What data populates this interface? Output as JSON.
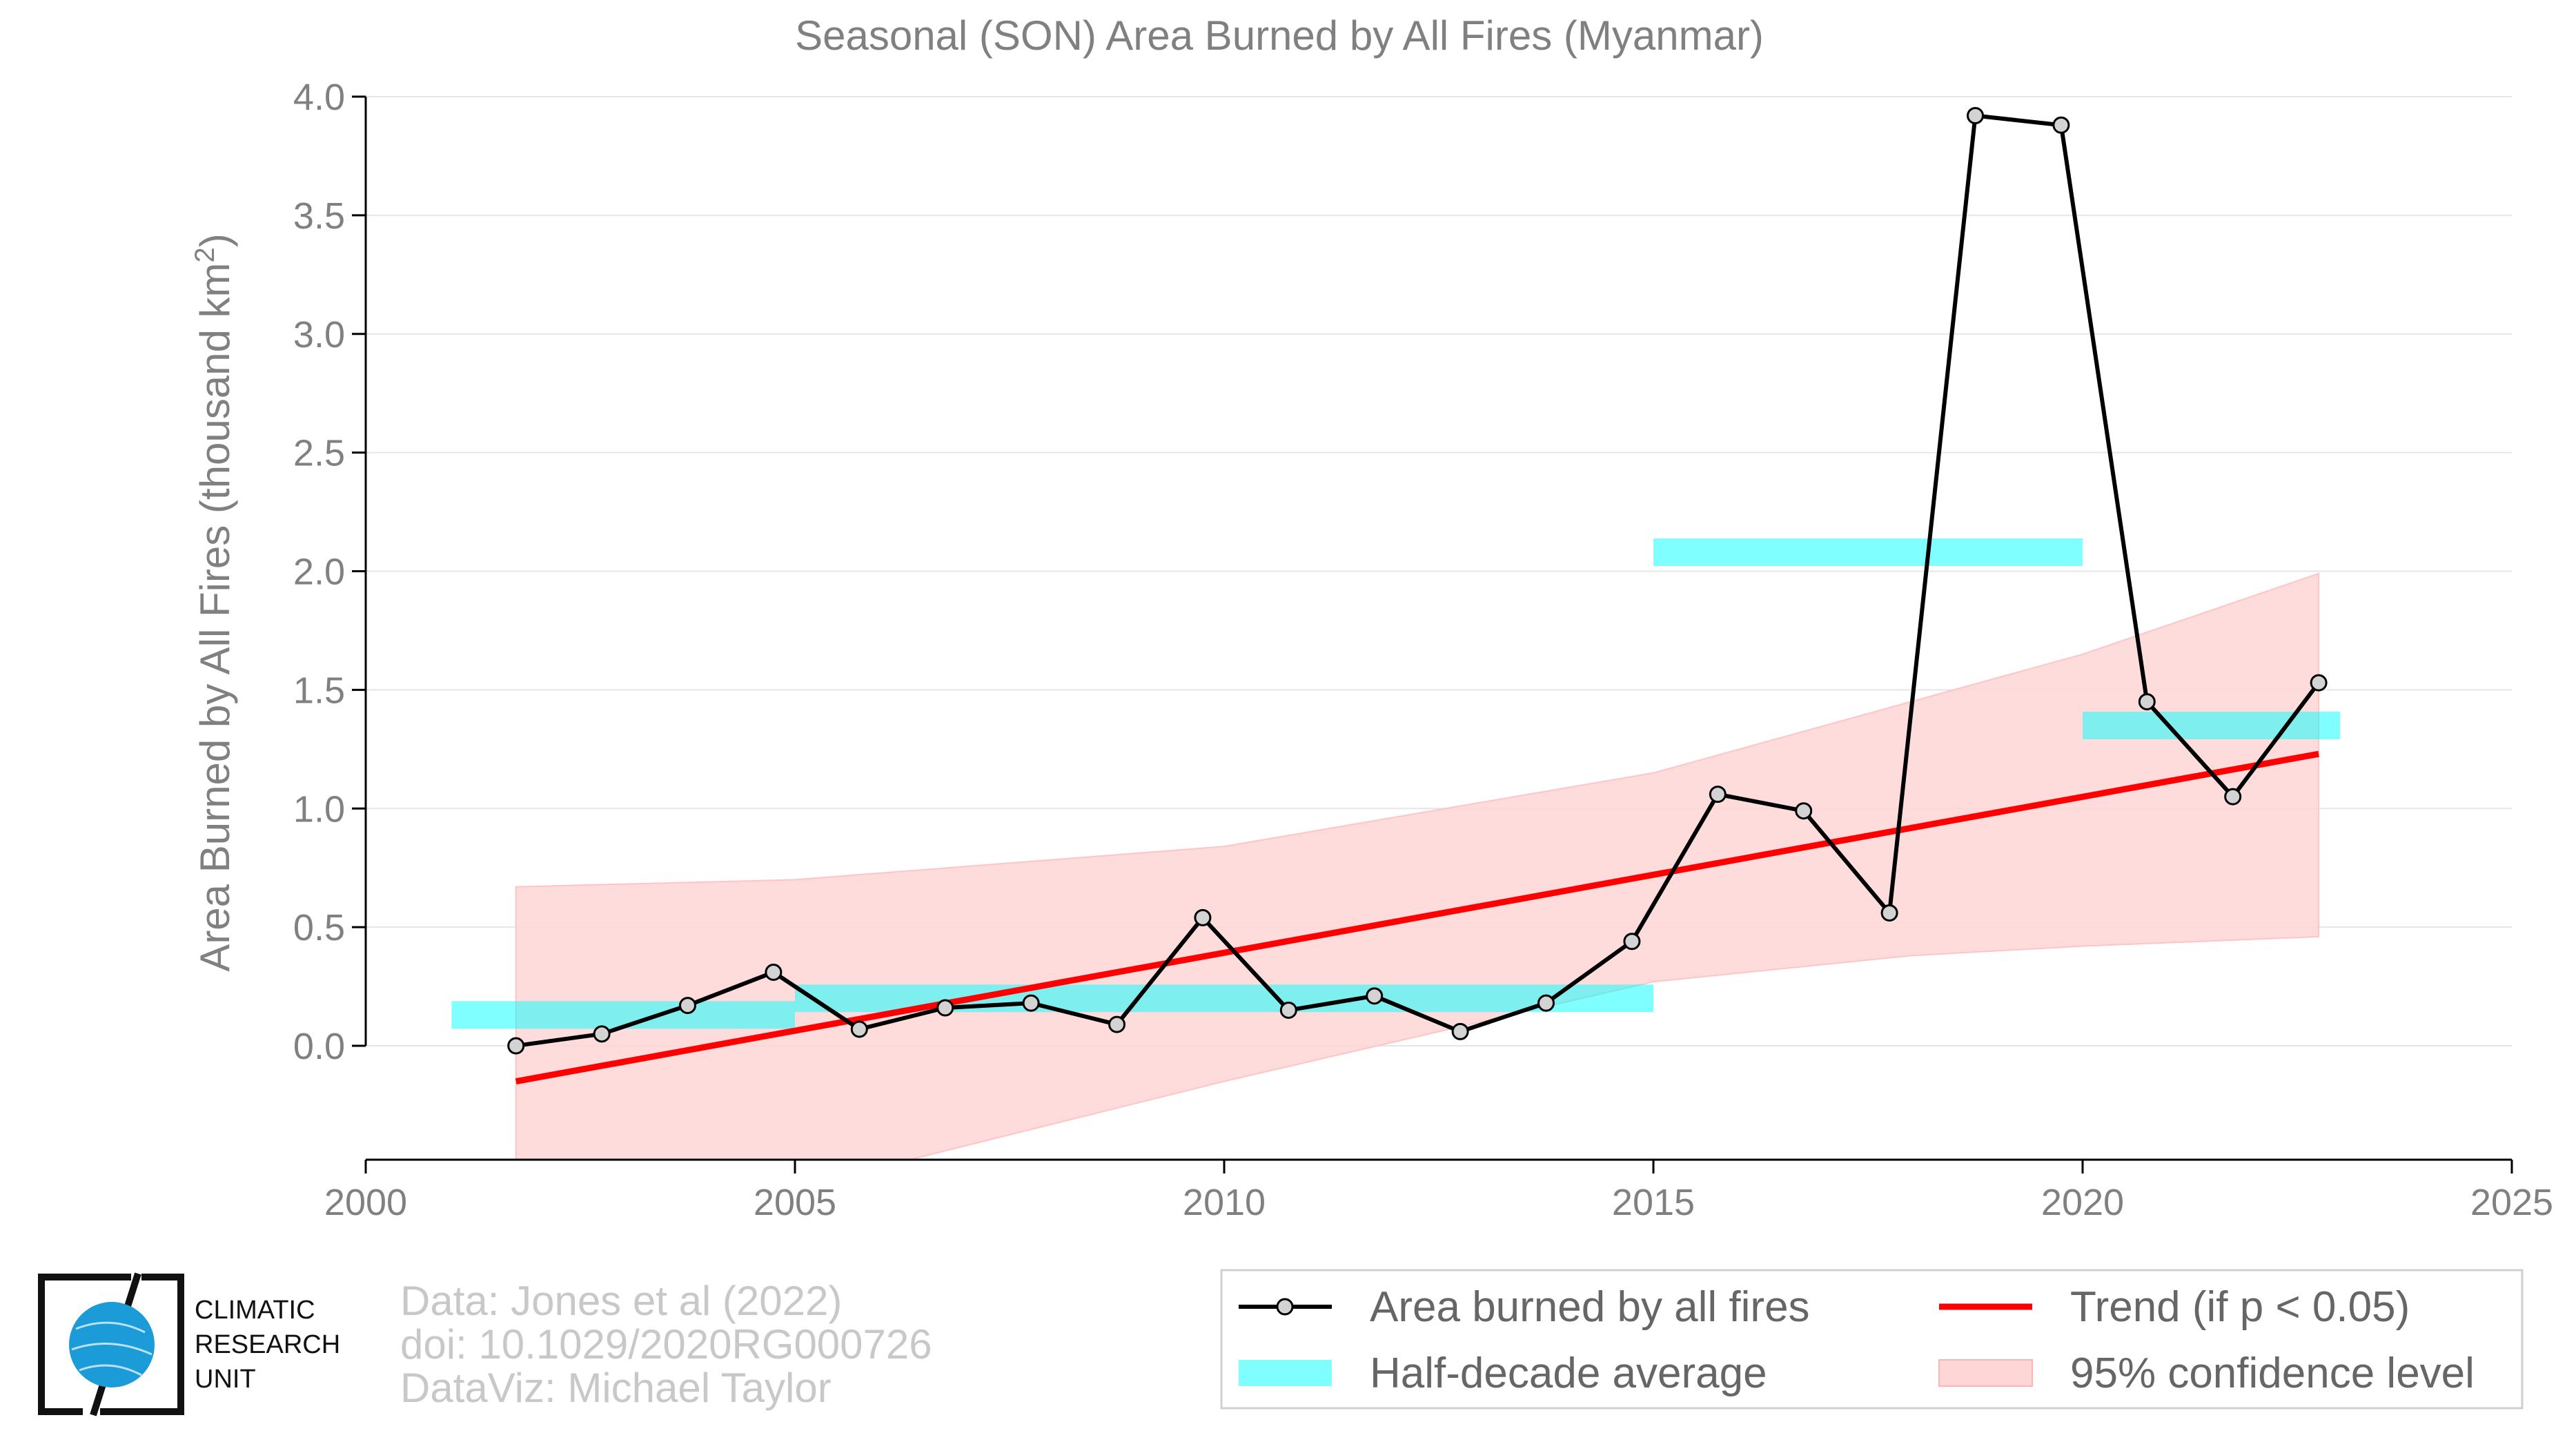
{
  "chart_data": {
    "type": "line",
    "title": "Seasonal (SON) Area Burned by All Fires (Myanmar)",
    "xlabel": "",
    "ylabel": "Area Burned by All Fires (thousand km",
    "ylabel_superscript": "2",
    "ylabel_close": ")",
    "xlim": [
      2000,
      2025
    ],
    "ylim": [
      -0.48,
      4.0
    ],
    "x_ticks": [
      2000,
      2005,
      2010,
      2015,
      2020,
      2025
    ],
    "y_ticks": [
      0.0,
      0.5,
      1.0,
      1.5,
      2.0,
      2.5,
      3.0,
      3.5,
      4.0
    ],
    "y_tick_labels": [
      "0.0",
      "0.5",
      "1.0",
      "1.5",
      "2.0",
      "2.5",
      "3.0",
      "3.5",
      "4.0"
    ],
    "grid": true,
    "legend_position": "bottom-right",
    "series": [
      {
        "name": "Area burned by all fires",
        "color": "#000000",
        "x": [
          2001.75,
          2002.75,
          2003.75,
          2004.75,
          2005.75,
          2006.75,
          2007.75,
          2008.75,
          2009.75,
          2010.75,
          2011.75,
          2012.75,
          2013.75,
          2014.75,
          2015.75,
          2016.75,
          2017.75,
          2018.75,
          2019.75,
          2020.75,
          2021.75,
          2022.75
        ],
        "values": [
          0.0,
          0.05,
          0.17,
          0.31,
          0.07,
          0.16,
          0.18,
          0.09,
          0.54,
          0.15,
          0.21,
          0.06,
          0.18,
          0.44,
          1.06,
          0.99,
          0.56,
          3.92,
          3.88,
          1.45,
          1.05,
          1.53
        ]
      }
    ],
    "half_decade_average": {
      "name": "Half-decade average",
      "color": "#00ffff",
      "segments": [
        {
          "x0": 2001,
          "x1": 2005,
          "value": 0.13
        },
        {
          "x0": 2005,
          "x1": 2015,
          "value": 0.2
        },
        {
          "x0": 2015,
          "x1": 2020,
          "value": 2.08
        },
        {
          "x0": 2020,
          "x1": 2023,
          "value": 1.35
        }
      ]
    },
    "trend": {
      "name": "Trend (if p < 0.05)",
      "color": "#ff0000",
      "x": [
        2001.75,
        2022.75
      ],
      "values": [
        -0.15,
        1.23
      ]
    },
    "confidence": {
      "name": "95% confidence level",
      "color": "#ffd6d6",
      "x": [
        2001.75,
        2005,
        2010,
        2015,
        2018,
        2020,
        2022.75
      ],
      "upper": [
        0.67,
        0.7,
        0.84,
        1.15,
        1.45,
        1.65,
        1.99
      ],
      "lower": [
        -0.97,
        -0.6,
        -0.15,
        0.27,
        0.38,
        0.42,
        0.46
      ]
    }
  },
  "credits": {
    "line1": "Data: Jones et al (2022)",
    "line2": "doi: 10.1029/2020RG000726",
    "line3": "DataViz: Michael Taylor"
  },
  "logo": {
    "line1": "CLIMATIC",
    "line2": "RESEARCH",
    "line3": "UNIT"
  },
  "colors": {
    "text_gray": "#808080",
    "grid": "#e6e6e6",
    "marker_fill": "#d3d3d3"
  }
}
